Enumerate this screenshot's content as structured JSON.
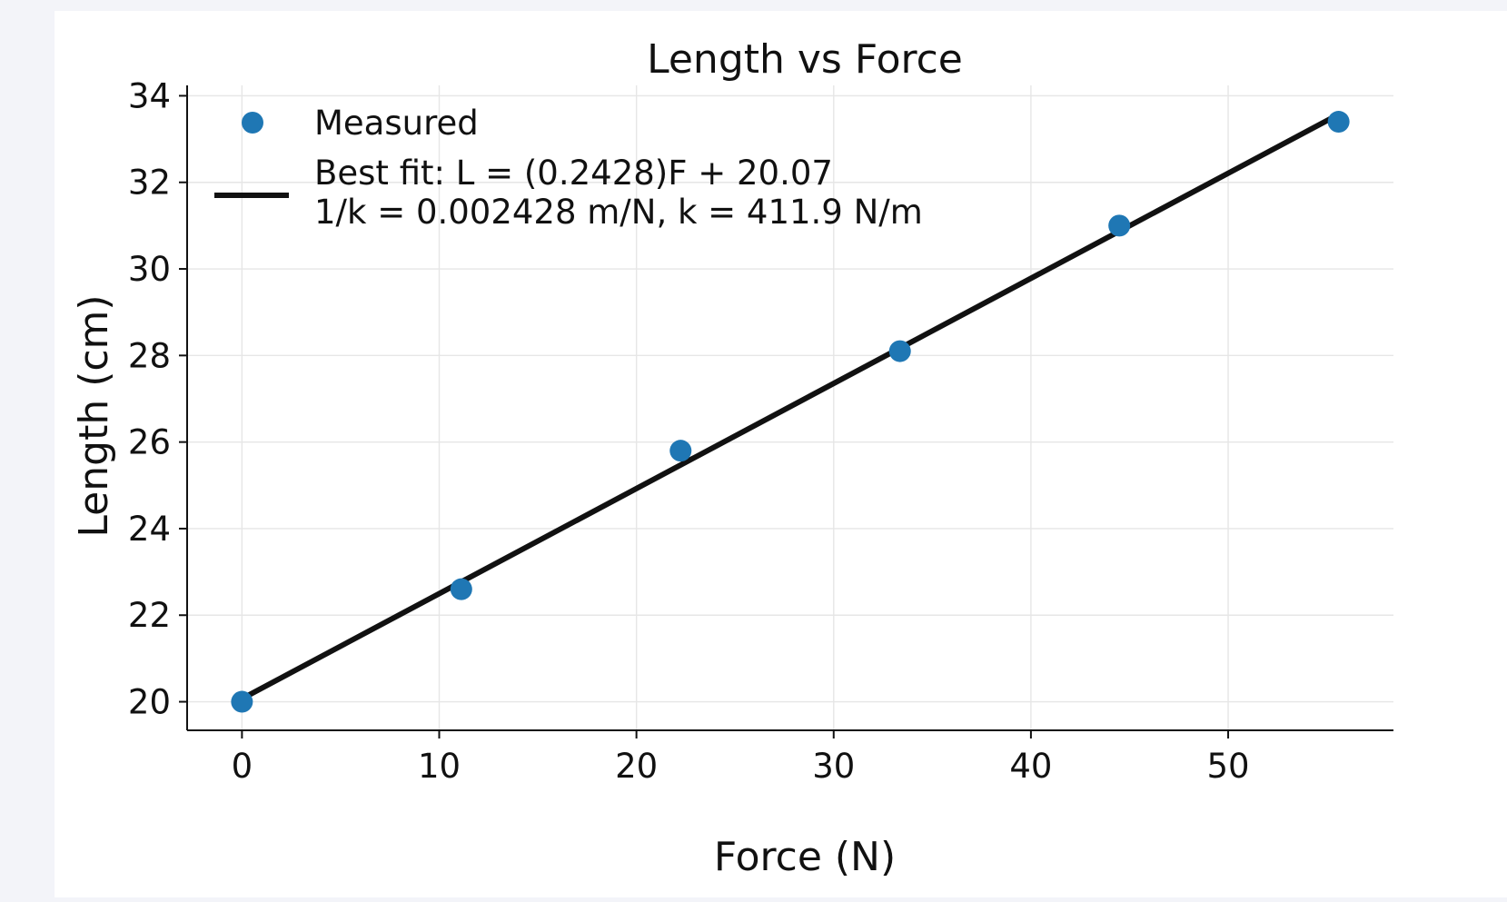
{
  "chart_data": {
    "type": "scatter",
    "title": "Length vs Force",
    "xlabel": "Force (N)",
    "ylabel": "Length (cm)",
    "xlim": [
      -2.78,
      58.38
    ],
    "ylim": [
      19.34,
      34.24
    ],
    "xticks": [
      0,
      10,
      20,
      30,
      40,
      50
    ],
    "yticks": [
      20,
      22,
      24,
      26,
      28,
      30,
      32,
      34
    ],
    "grid": true,
    "legend_position": "upper-left",
    "series": [
      {
        "name": "Measured",
        "kind": "scatter",
        "color": "#1f77b4",
        "x": [
          0,
          11.12,
          22.24,
          33.36,
          44.48,
          55.6
        ],
        "y": [
          20.0,
          22.6,
          25.8,
          28.1,
          31.0,
          33.4
        ]
      },
      {
        "name": "Best fit: L = (0.2428)F + 20.07",
        "name_line2": "1/k = 0.002428 m/N,  k = 411.9 N/m",
        "kind": "line",
        "color": "#111111",
        "x": [
          0,
          55.6
        ],
        "y": [
          20.07,
          33.57
        ]
      }
    ]
  }
}
